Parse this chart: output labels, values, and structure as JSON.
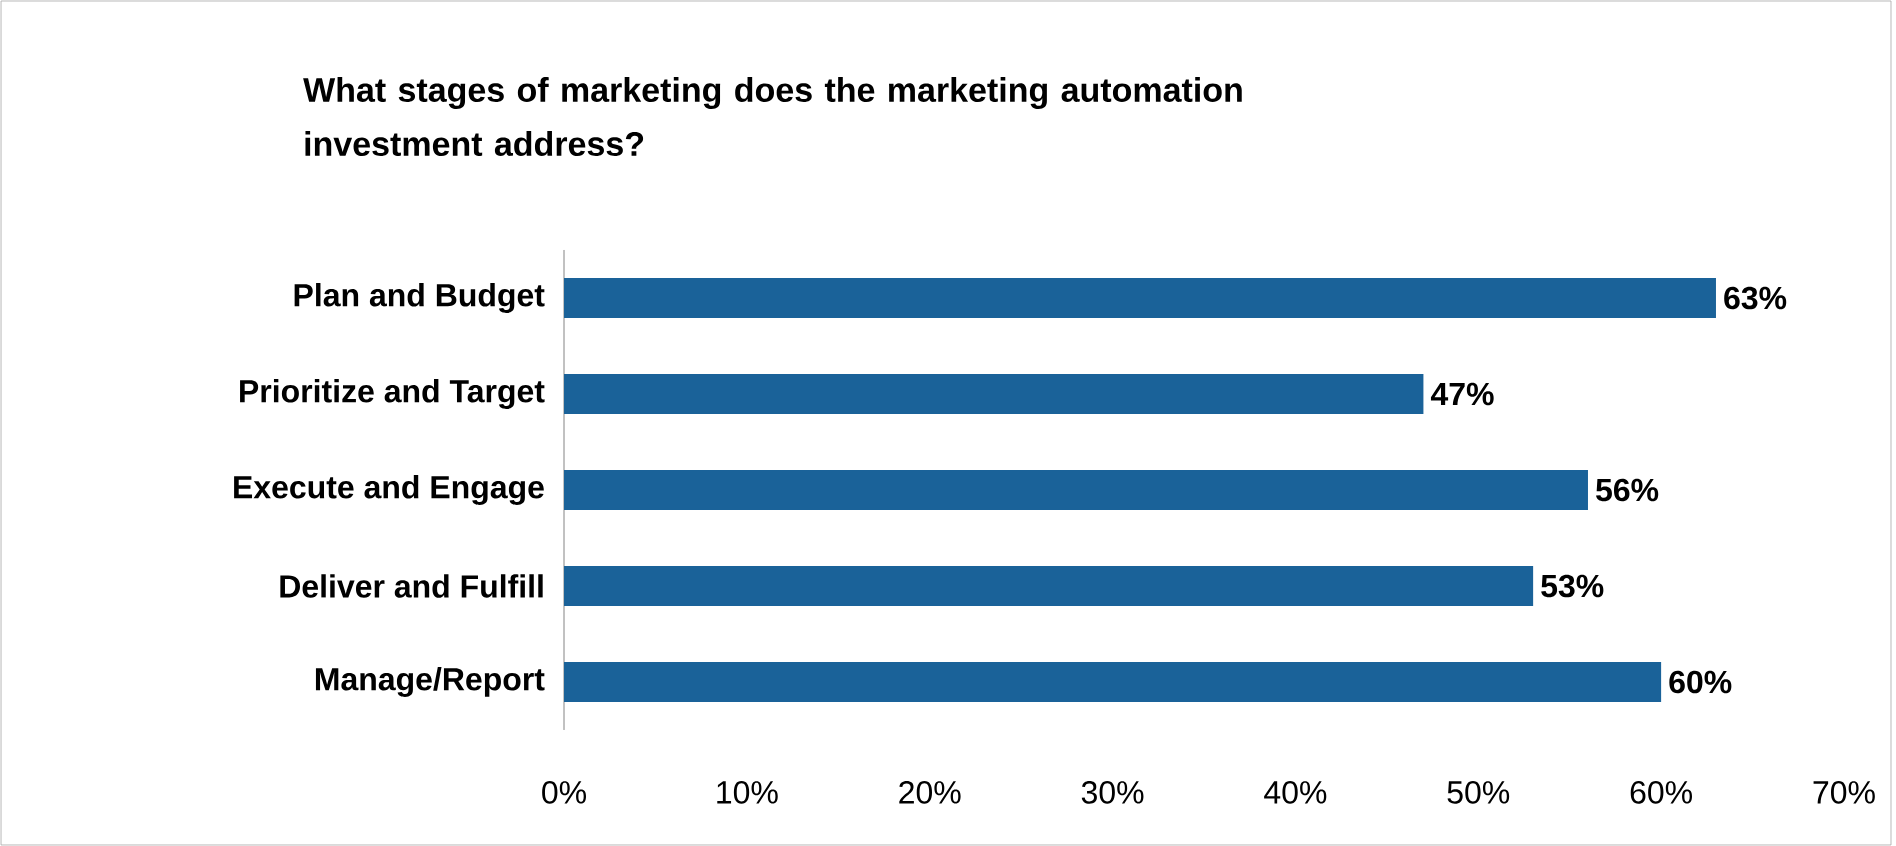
{
  "chart_data": {
    "type": "bar",
    "orientation": "horizontal",
    "title": "What stages of marketing does the marketing automation investment address?",
    "categories": [
      "Plan and Budget",
      "Prioritize and Target",
      "Execute and Engage",
      "Deliver and Fulfill",
      "Manage/Report"
    ],
    "values": [
      63,
      47,
      56,
      53,
      60
    ],
    "value_labels": [
      "63%",
      "47%",
      "56%",
      "53%",
      "60%"
    ],
    "color": "#1a6299",
    "xlim": [
      0,
      70
    ],
    "xticks": [
      {
        "value": 0,
        "label": "0%"
      },
      {
        "value": 10,
        "label": "10%"
      },
      {
        "value": 20,
        "label": "20%"
      },
      {
        "value": 30,
        "label": "30%"
      },
      {
        "value": 40,
        "label": "40%"
      },
      {
        "value": 50,
        "label": "50%"
      },
      {
        "value": 60,
        "label": "60%"
      },
      {
        "value": 70,
        "label": "70%"
      }
    ],
    "grid": false
  }
}
